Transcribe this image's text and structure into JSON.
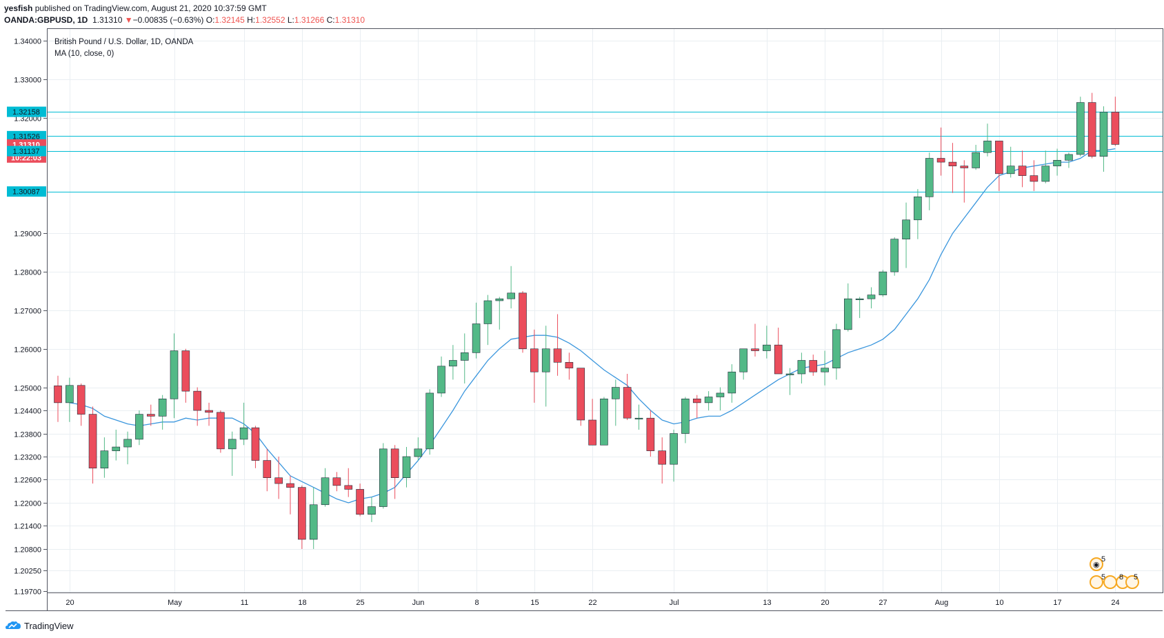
{
  "header": {
    "user": "yesfish",
    "published": " published on TradingView.com, August 21, 2020 10:37:59 GMT",
    "symbol": "OANDA:GBPUSD, 1D",
    "last": "1.31310",
    "arrow": "▼",
    "change": "−0.00835 (−0.63%)",
    "o_label": "O:",
    "o_value": "1.32145",
    "h_label": "H:",
    "h_value": "1.32552",
    "l_label": "L:",
    "l_value": "1.31266",
    "c_label": "C:",
    "c_value": "1.31310"
  },
  "legend": {
    "title": "British Pound / U.S. Dollar, 1D, OANDA",
    "indicator": "MA (10, close, 0)"
  },
  "price_tags": [
    {
      "text": "1.32158",
      "price": 1.32158,
      "kind": "hline"
    },
    {
      "text": "1.31526",
      "price": 1.31526,
      "kind": "hline"
    },
    {
      "text": "1.31310",
      "price": 1.3131,
      "kind": "last"
    },
    {
      "text": "10:22:03",
      "price": 1.3097,
      "kind": "countdown"
    },
    {
      "text": "1.31137",
      "price": 1.31137,
      "kind": "hline"
    },
    {
      "text": "1.30087",
      "price": 1.30087,
      "kind": "hline"
    }
  ],
  "event_badges": [
    "5",
    "5",
    "8",
    "5"
  ],
  "footer": {
    "brand": "TradingView"
  },
  "colors": {
    "up": "#53b987",
    "down": "#eb4d5c",
    "ma": "#3a96dd",
    "hline": "#00bcd4",
    "grid": "#e9eef2"
  },
  "chart_data": {
    "type": "candlestick",
    "title": "British Pound / U.S. Dollar, 1D, OANDA",
    "instrument": "OANDA:GBPUSD",
    "interval": "1D",
    "ylim": [
      1.1967,
      1.3431
    ],
    "y_ticks": [
      "1.34000",
      "1.33000",
      "1.32000",
      "1.29000",
      "1.28000",
      "1.27000",
      "1.26000",
      "1.25000",
      "1.24400",
      "1.23800",
      "1.23200",
      "1.22600",
      "1.22000",
      "1.21400",
      "1.20800",
      "1.20250",
      "1.19700"
    ],
    "x_ticks": [
      {
        "label": "20",
        "index": 1
      },
      {
        "label": "May",
        "index": 10
      },
      {
        "label": "11",
        "index": 16
      },
      {
        "label": "18",
        "index": 21
      },
      {
        "label": "25",
        "index": 26
      },
      {
        "label": "Jun",
        "index": 31
      },
      {
        "label": "8",
        "index": 36
      },
      {
        "label": "15",
        "index": 41
      },
      {
        "label": "22",
        "index": 46
      },
      {
        "label": "Jul",
        "index": 53
      },
      {
        "label": "13",
        "index": 61
      },
      {
        "label": "20",
        "index": 66
      },
      {
        "label": "27",
        "index": 71
      },
      {
        "label": "Aug",
        "index": 76
      },
      {
        "label": "10",
        "index": 81
      },
      {
        "label": "17",
        "index": 86
      },
      {
        "label": "24",
        "index": 91
      }
    ],
    "horizontal_lines": [
      1.32158,
      1.31526,
      1.31137,
      1.30087
    ],
    "ohlc": [
      [
        1.2504,
        1.253,
        1.241,
        1.246
      ],
      [
        1.246,
        1.2525,
        1.241,
        1.2505
      ],
      [
        1.2505,
        1.251,
        1.24,
        1.243
      ],
      [
        1.243,
        1.245,
        1.225,
        1.229
      ],
      [
        1.229,
        1.237,
        1.2265,
        1.2335
      ],
      [
        1.2335,
        1.239,
        1.231,
        1.2345
      ],
      [
        1.2345,
        1.2385,
        1.23,
        1.2365
      ],
      [
        1.2365,
        1.244,
        1.235,
        1.243
      ],
      [
        1.243,
        1.2455,
        1.24,
        1.2425
      ],
      [
        1.2425,
        1.248,
        1.239,
        1.247
      ],
      [
        1.247,
        1.264,
        1.242,
        1.2595
      ],
      [
        1.2595,
        1.26,
        1.246,
        1.249
      ],
      [
        1.249,
        1.25,
        1.24,
        1.244
      ],
      [
        1.244,
        1.246,
        1.24,
        1.2435
      ],
      [
        1.2435,
        1.244,
        1.233,
        1.234
      ],
      [
        1.234,
        1.2385,
        1.227,
        1.2365
      ],
      [
        1.2365,
        1.246,
        1.235,
        1.2395
      ],
      [
        1.2395,
        1.24,
        1.229,
        1.231
      ],
      [
        1.231,
        1.234,
        1.223,
        1.2265
      ],
      [
        1.2265,
        1.232,
        1.221,
        1.225
      ],
      [
        1.225,
        1.227,
        1.217,
        1.224
      ],
      [
        1.224,
        1.2245,
        1.208,
        1.2105
      ],
      [
        1.2105,
        1.224,
        1.208,
        1.2195
      ],
      [
        1.2195,
        1.229,
        1.219,
        1.2265
      ],
      [
        1.2265,
        1.228,
        1.223,
        1.2245
      ],
      [
        1.2245,
        1.229,
        1.2215,
        1.2235
      ],
      [
        1.2235,
        1.225,
        1.2165,
        1.217
      ],
      [
        1.217,
        1.2215,
        1.215,
        1.219
      ],
      [
        1.219,
        1.2355,
        1.2185,
        1.234
      ],
      [
        1.234,
        1.235,
        1.221,
        1.2265
      ],
      [
        1.2265,
        1.2345,
        1.224,
        1.232
      ],
      [
        1.232,
        1.237,
        1.231,
        1.234
      ],
      [
        1.234,
        1.2495,
        1.2325,
        1.2485
      ],
      [
        1.2485,
        1.258,
        1.2475,
        1.2555
      ],
      [
        1.2555,
        1.261,
        1.252,
        1.257
      ],
      [
        1.257,
        1.264,
        1.251,
        1.259
      ],
      [
        1.259,
        1.272,
        1.2575,
        1.2665
      ],
      [
        1.2665,
        1.274,
        1.261,
        1.2725
      ],
      [
        1.2725,
        1.2735,
        1.265,
        1.273
      ],
      [
        1.273,
        1.2815,
        1.2705,
        1.2745
      ],
      [
        1.2745,
        1.275,
        1.259,
        1.26
      ],
      [
        1.26,
        1.265,
        1.246,
        1.254
      ],
      [
        1.254,
        1.266,
        1.245,
        1.26
      ],
      [
        1.26,
        1.269,
        1.253,
        1.2565
      ],
      [
        1.2565,
        1.259,
        1.252,
        1.255
      ],
      [
        1.255,
        1.255,
        1.24,
        1.2415
      ],
      [
        1.2415,
        1.247,
        1.235,
        1.235
      ],
      [
        1.235,
        1.2475,
        1.235,
        1.247
      ],
      [
        1.247,
        1.252,
        1.24,
        1.25
      ],
      [
        1.25,
        1.2535,
        1.2415,
        1.242
      ],
      [
        1.242,
        1.2455,
        1.239,
        1.242
      ],
      [
        1.242,
        1.244,
        1.232,
        1.2335
      ],
      [
        1.2335,
        1.237,
        1.225,
        1.23
      ],
      [
        1.23,
        1.239,
        1.2255,
        1.238
      ],
      [
        1.238,
        1.2475,
        1.2355,
        1.247
      ],
      [
        1.247,
        1.248,
        1.242,
        1.246
      ],
      [
        1.246,
        1.249,
        1.244,
        1.2475
      ],
      [
        1.2475,
        1.25,
        1.244,
        1.2485
      ],
      [
        1.2485,
        1.256,
        1.246,
        1.254
      ],
      [
        1.254,
        1.26,
        1.252,
        1.26
      ],
      [
        1.26,
        1.2665,
        1.258,
        1.2595
      ],
      [
        1.2595,
        1.266,
        1.2575,
        1.261
      ],
      [
        1.261,
        1.2655,
        1.2535,
        1.2535
      ],
      [
        1.2535,
        1.255,
        1.248,
        1.2535
      ],
      [
        1.2535,
        1.259,
        1.251,
        1.257
      ],
      [
        1.257,
        1.2585,
        1.253,
        1.254
      ],
      [
        1.254,
        1.2595,
        1.2505,
        1.255
      ],
      [
        1.255,
        1.2665,
        1.252,
        1.265
      ],
      [
        1.265,
        1.277,
        1.2645,
        1.273
      ],
      [
        1.273,
        1.2735,
        1.268,
        1.273
      ],
      [
        1.273,
        1.276,
        1.2705,
        1.274
      ],
      [
        1.274,
        1.2805,
        1.2735,
        1.28
      ],
      [
        1.28,
        1.289,
        1.279,
        1.2885
      ],
      [
        1.2885,
        1.298,
        1.281,
        1.2935
      ],
      [
        1.2935,
        1.3015,
        1.2885,
        1.2995
      ],
      [
        1.2995,
        1.311,
        1.296,
        1.3095
      ],
      [
        1.3095,
        1.3175,
        1.305,
        1.3085
      ],
      [
        1.3085,
        1.3135,
        1.3005,
        1.3075
      ],
      [
        1.3075,
        1.309,
        1.298,
        1.307
      ],
      [
        1.307,
        1.313,
        1.3065,
        1.311
      ],
      [
        1.311,
        1.3185,
        1.31,
        1.314
      ],
      [
        1.314,
        1.314,
        1.301,
        1.3055
      ],
      [
        1.3055,
        1.3125,
        1.3045,
        1.3075
      ],
      [
        1.3075,
        1.3115,
        1.302,
        1.305
      ],
      [
        1.305,
        1.309,
        1.301,
        1.3035
      ],
      [
        1.3035,
        1.3115,
        1.303,
        1.3075
      ],
      [
        1.3075,
        1.312,
        1.305,
        1.309
      ],
      [
        1.309,
        1.311,
        1.307,
        1.3105
      ],
      [
        1.3105,
        1.3255,
        1.31,
        1.324
      ],
      [
        1.324,
        1.3265,
        1.3095,
        1.31
      ],
      [
        1.31,
        1.323,
        1.306,
        1.3215
      ],
      [
        1.3215,
        1.3255,
        1.3127,
        1.3131
      ]
    ],
    "ma": {
      "name": "MA (10, close, 0)",
      "values": [
        null,
        1.246,
        1.2455,
        1.2445,
        1.2425,
        1.2415,
        1.2405,
        1.24,
        1.2405,
        1.241,
        1.241,
        1.242,
        1.2415,
        1.242,
        1.242,
        1.242,
        1.2405,
        1.238,
        1.234,
        1.2305,
        1.227,
        1.2255,
        1.224,
        1.2225,
        1.221,
        1.22,
        1.221,
        1.2215,
        1.2225,
        1.224,
        1.2275,
        1.231,
        1.235,
        1.2395,
        1.244,
        1.249,
        1.253,
        1.257,
        1.26,
        1.2625,
        1.263,
        1.2635,
        1.2635,
        1.263,
        1.2615,
        1.2595,
        1.257,
        1.2545,
        1.2525,
        1.2505,
        1.247,
        1.244,
        1.2415,
        1.2405,
        1.241,
        1.242,
        1.2425,
        1.2425,
        1.244,
        1.246,
        1.248,
        1.25,
        1.252,
        1.2535,
        1.255,
        1.2555,
        1.256,
        1.2575,
        1.259,
        1.26,
        1.261,
        1.2625,
        1.265,
        1.269,
        1.273,
        1.278,
        1.2845,
        1.29,
        1.294,
        1.298,
        1.302,
        1.305,
        1.306,
        1.307,
        1.3075,
        1.308,
        1.3085,
        1.3085,
        1.3095,
        1.3115,
        1.3115,
        1.312
      ]
    }
  }
}
